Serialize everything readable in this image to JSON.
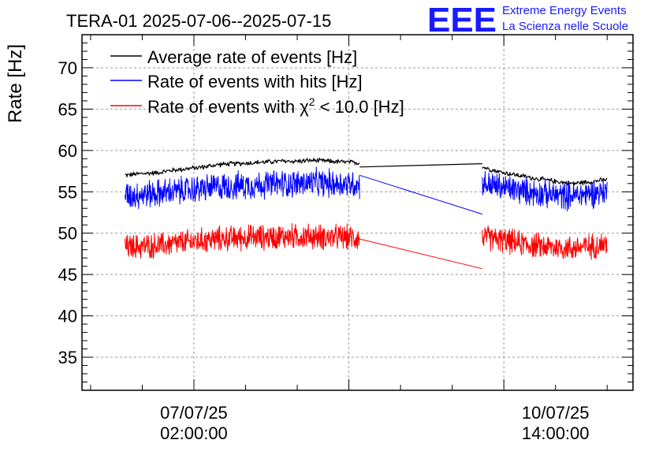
{
  "header": {
    "title": "TERA-01 2025-07-06--2025-07-15",
    "logo_text": "EEE",
    "logo_line1": "Extreme Energy Events",
    "logo_line2": "La Scienza nelle Scuole"
  },
  "colors": {
    "average": "#000000",
    "hits": "#0000ff",
    "chi2": "#ff0000",
    "logo": "#1a1aff",
    "grid": "#9a9a9a"
  },
  "chart_data": {
    "type": "line",
    "title": "TERA-01 2025-07-06--2025-07-15",
    "ylabel": "Rate [Hz]",
    "xlabel": "",
    "ylim": [
      31,
      74
    ],
    "grid": true,
    "legend_position": "top-left",
    "y_ticks": [
      "35",
      "40",
      "45",
      "50",
      "55",
      "60",
      "65",
      "70"
    ],
    "x_ticks": [
      {
        "line1": "07/07/25",
        "line2": "02:00:00"
      },
      {
        "line1": "10/07/25",
        "line2": "14:00:00"
      }
    ],
    "legend": [
      {
        "key": "average",
        "label": "Average rate of events [Hz]"
      },
      {
        "key": "hits",
        "label": "Rate of events with hits [Hz]"
      },
      {
        "key": "chi2",
        "label_prefix": "Rate of events with χ",
        "label_sup": "2",
        "label_suffix": " < 10.0 [Hz]"
      }
    ],
    "series": [
      {
        "key": "average",
        "segments": [
          {
            "start": "2025-07-06T10:00",
            "end": "2025-07-08T16:30",
            "values": [
              57.0,
              57.2,
              57.3,
              57.6,
              57.8,
              58.0,
              58.3,
              58.4,
              58.5,
              58.6,
              58.7,
              58.7,
              58.8,
              58.7,
              58.6,
              58.5
            ]
          },
          {
            "start": "2025-07-08T16:30",
            "end": "2025-07-09T21:00",
            "values": [
              58.0,
              58.4
            ]
          },
          {
            "start": "2025-07-09T21:00",
            "end": "2025-07-11T02:00",
            "values": [
              58.0,
              57.4,
              57.0,
              56.6,
              56.3,
              56.0,
              56.2,
              56.5
            ]
          }
        ]
      },
      {
        "key": "hits",
        "segments": [
          {
            "start": "2025-07-06T10:00",
            "end": "2025-07-08T16:30",
            "values": [
              54.5,
              54.7,
              54.8,
              55.0,
              55.2,
              55.4,
              55.6,
              55.7,
              55.8,
              55.9,
              56.0,
              56.0,
              56.1,
              56.0,
              56.0,
              55.9
            ]
          },
          {
            "start": "2025-07-08T16:30",
            "end": "2025-07-09T21:00",
            "values": [
              57.0,
              52.3
            ]
          },
          {
            "start": "2025-07-09T21:00",
            "end": "2025-07-11T02:00",
            "values": [
              56.0,
              55.6,
              55.2,
              54.9,
              54.6,
              54.5,
              54.8,
              55.1
            ]
          }
        ]
      },
      {
        "key": "chi2",
        "segments": [
          {
            "start": "2025-07-06T10:00",
            "end": "2025-07-08T16:30",
            "values": [
              48.3,
              48.4,
              48.5,
              48.7,
              48.9,
              49.1,
              49.3,
              49.4,
              49.5,
              49.5,
              49.6,
              49.6,
              49.6,
              49.5,
              49.5,
              49.4
            ]
          },
          {
            "start": "2025-07-08T16:30",
            "end": "2025-07-09T21:00",
            "values": [
              49.3,
              45.7
            ]
          },
          {
            "start": "2025-07-09T21:00",
            "end": "2025-07-11T02:00",
            "values": [
              49.5,
              49.2,
              48.8,
              48.5,
              48.3,
              48.2,
              48.4,
              48.7
            ]
          }
        ]
      }
    ]
  }
}
